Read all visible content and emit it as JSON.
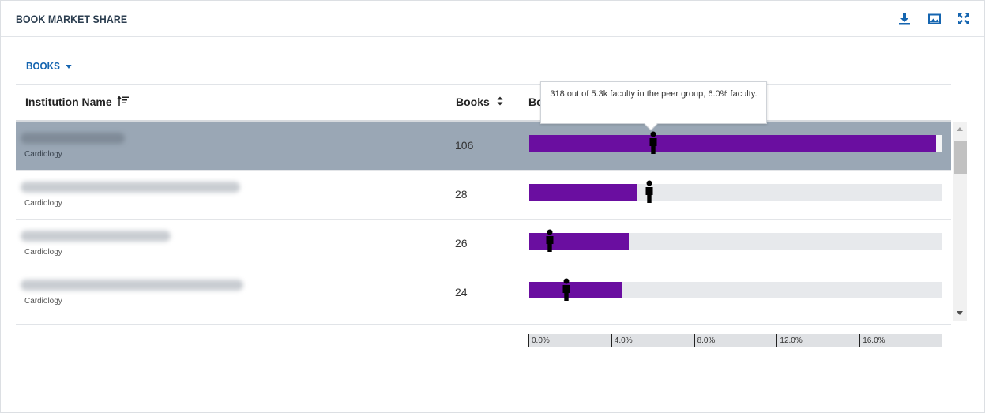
{
  "panel": {
    "title": "BOOK MARKET SHARE",
    "icons": [
      "download-icon",
      "image-icon",
      "expand-icon"
    ],
    "accent_color": "#1565b0"
  },
  "filter": {
    "selected": "BOOKS"
  },
  "table": {
    "columns": [
      {
        "label": "Institution Name",
        "sort_icon": "sort-ascending-icon"
      },
      {
        "label": "Books",
        "sort_icon": "sort-both-icon"
      },
      {
        "label": "Bo"
      }
    ],
    "bar_color": "#6a0ea0",
    "rows": [
      {
        "subtitle": "Cardiology",
        "books": "106",
        "share_pct": 19.7,
        "faculty_marker_pct": 6.0,
        "selected": true
      },
      {
        "subtitle": "Cardiology",
        "books": "28",
        "share_pct": 5.2,
        "faculty_marker_pct": 5.8,
        "selected": false
      },
      {
        "subtitle": "Cardiology",
        "books": "26",
        "share_pct": 4.8,
        "faculty_marker_pct": 1.0,
        "selected": false
      },
      {
        "subtitle": "Cardiology",
        "books": "24",
        "share_pct": 4.5,
        "faculty_marker_pct": 1.8,
        "selected": false
      }
    ]
  },
  "axis": {
    "ticks": [
      "0.0%",
      "4.0%",
      "8.0%",
      "12.0%",
      "16.0%"
    ],
    "max_pct": 20
  },
  "tooltip": {
    "text": "318 out of 5.3k faculty in the peer group, 6.0% faculty."
  }
}
